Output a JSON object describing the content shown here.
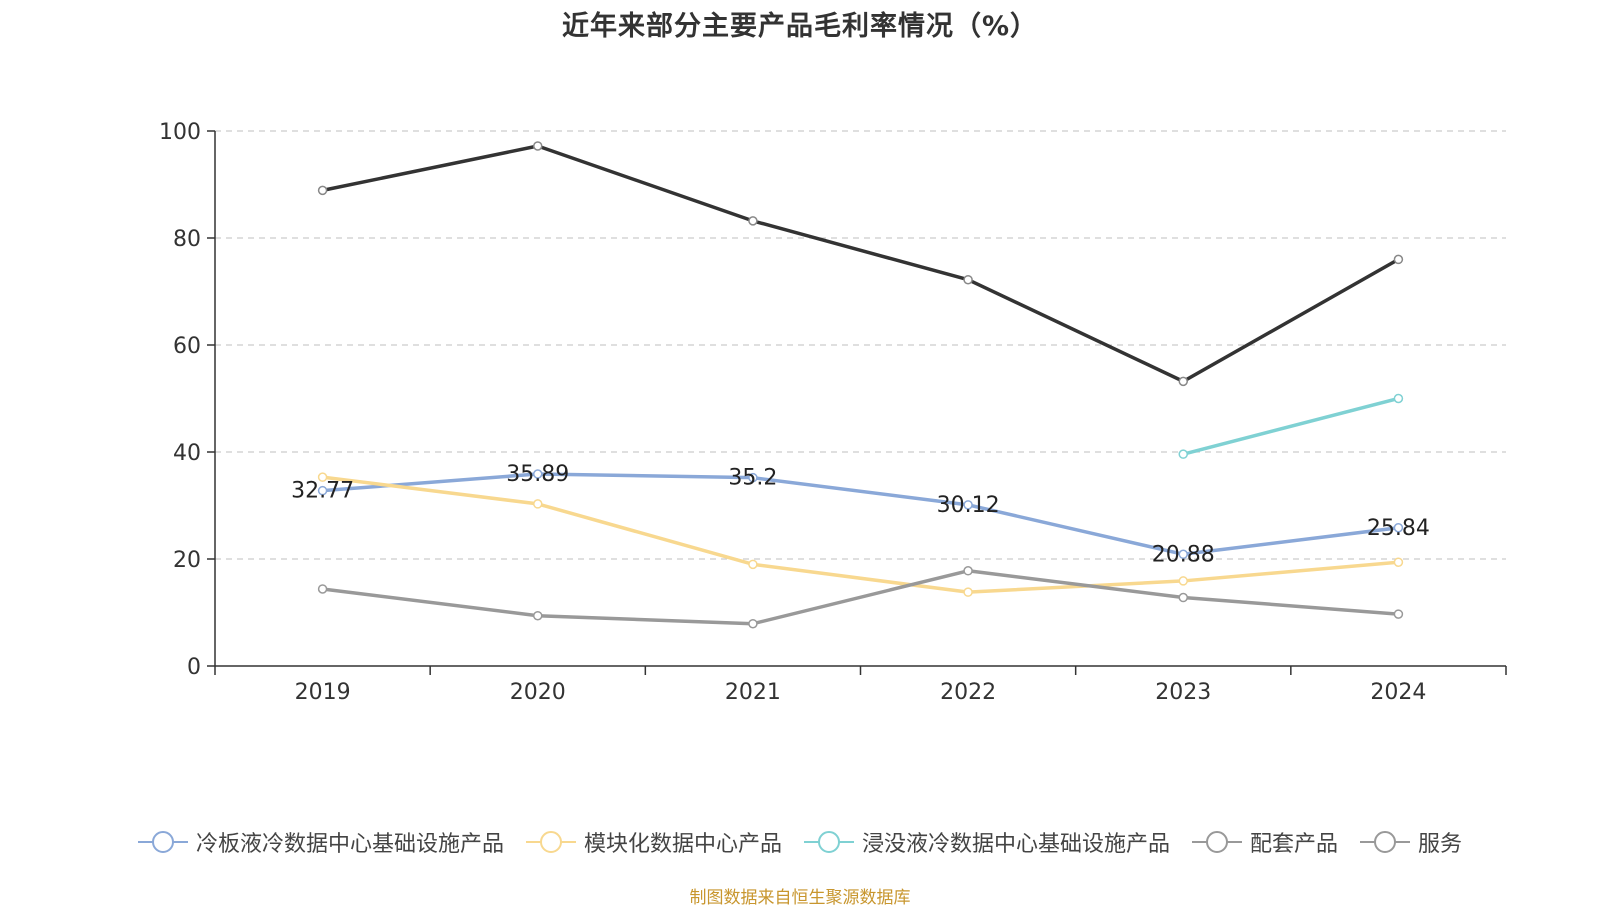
{
  "chart_data": {
    "type": "line",
    "title": "近年来部分主要产品毛利率情况（%）",
    "categories": [
      "2019",
      "2020",
      "2021",
      "2022",
      "2023",
      "2024"
    ],
    "ylim": [
      0,
      100
    ],
    "yticks": [
      0,
      20,
      40,
      60,
      80,
      100
    ],
    "grid": true,
    "legend_position": "bottom",
    "series": [
      {
        "name": "冷板液冷数据中心基础设施产品",
        "color": "#8aa8d8",
        "values": [
          32.77,
          35.89,
          35.2,
          30.12,
          20.88,
          25.84
        ],
        "show_labels": true
      },
      {
        "name": "模块化数据中心产品",
        "color": "#f8d88f",
        "values": [
          35.3,
          30.3,
          19.0,
          13.8,
          15.9,
          19.4
        ],
        "show_labels": false
      },
      {
        "name": "浸没液冷数据中心基础设施产品",
        "color": "#7fd1d3",
        "values": [
          null,
          null,
          null,
          null,
          39.6,
          50.0
        ],
        "show_labels": false
      },
      {
        "name": "配套产品",
        "color": "#333333",
        "values": [
          88.9,
          97.2,
          83.2,
          72.2,
          53.2,
          76.0
        ],
        "show_labels": false
      },
      {
        "name": "服务",
        "color": "#999999",
        "values": [
          14.4,
          9.4,
          7.9,
          17.8,
          12.8,
          9.7
        ],
        "show_labels": false
      }
    ],
    "source_text": "制图数据来自恒生聚源数据库"
  }
}
